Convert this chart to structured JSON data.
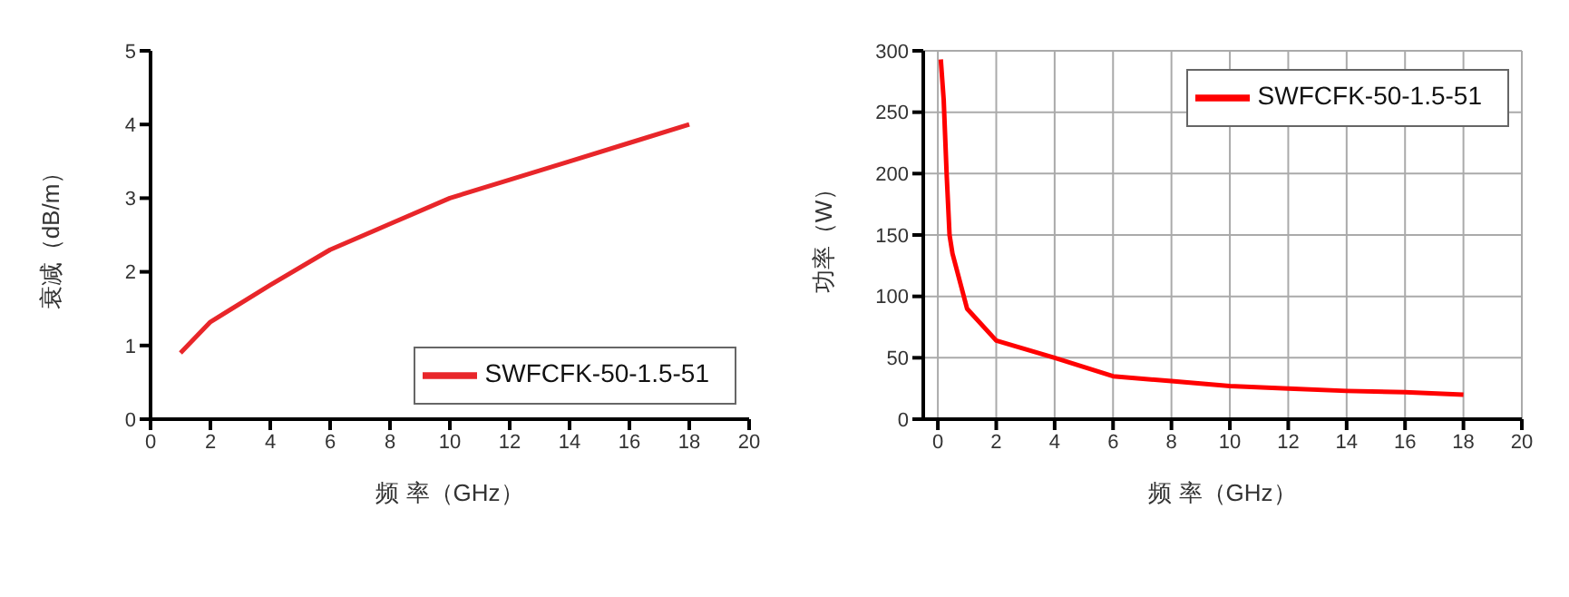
{
  "chart_data": [
    {
      "type": "line",
      "xlabel": "频 率（GHz）",
      "ylabel": "衰减（dB/m）",
      "x": [
        1,
        2,
        4,
        6,
        8,
        10,
        12,
        14,
        16,
        18
      ],
      "series": [
        {
          "name": "SWFCFK-50-1.5-51",
          "color": "#e8262a",
          "values": [
            0.9,
            1.32,
            1.82,
            2.3,
            2.65,
            3.0,
            3.25,
            3.5,
            3.75,
            4.0
          ]
        }
      ],
      "xlim": [
        0,
        20
      ],
      "xticks": [
        0,
        2,
        4,
        6,
        8,
        10,
        12,
        14,
        16,
        18,
        20
      ],
      "ylim": [
        0,
        5
      ],
      "yticks": [
        0,
        1,
        2,
        3,
        4,
        5
      ],
      "grid": false,
      "legend": "bottom right",
      "marker": "none",
      "line_style": "solid"
    },
    {
      "type": "line",
      "xlabel": "频 率（GHz）",
      "ylabel": "功率（W）",
      "x": [
        0.1,
        0.2,
        0.3,
        0.4,
        0.5,
        1,
        2,
        4,
        6,
        8,
        10,
        12,
        14,
        16,
        18
      ],
      "series": [
        {
          "name": "SWFCFK-50-1.5-51",
          "color": "#ff0000",
          "values": [
            293,
            260,
            200,
            150,
            135,
            90,
            64,
            50,
            35,
            31,
            27,
            25,
            23,
            22,
            20
          ]
        }
      ],
      "xlim": [
        -0.5,
        20
      ],
      "xticks": [
        0,
        2,
        4,
        6,
        8,
        10,
        12,
        14,
        16,
        18,
        20
      ],
      "ylim": [
        0,
        300
      ],
      "yticks": [
        0,
        50,
        100,
        150,
        200,
        250,
        300
      ],
      "grid": true,
      "legend": "top right",
      "marker": "none",
      "line_style": "solid"
    }
  ]
}
